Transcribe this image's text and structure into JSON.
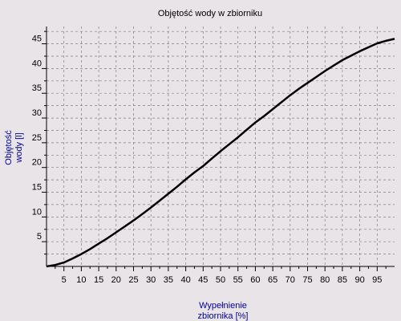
{
  "chart_data": {
    "type": "line",
    "title": "Objętość wody w zbiorniku",
    "ylabel": [
      "Objętość",
      "wody [l]"
    ],
    "xlabel": [
      "Wypełnienie",
      "zbiornika [%]"
    ],
    "xlim": [
      0,
      100
    ],
    "ylim": [
      0,
      48.5
    ],
    "x_ticks": [
      5,
      10,
      15,
      20,
      25,
      30,
      35,
      40,
      45,
      50,
      55,
      60,
      65,
      70,
      75,
      80,
      85,
      90,
      95
    ],
    "y_ticks": [
      5,
      10,
      15,
      20,
      25,
      30,
      35,
      40,
      45
    ],
    "y_minor_step": 2.5,
    "grid": true,
    "colors": {
      "background": "#e8e4e8",
      "line": "#000000",
      "axis_label": "#0000a0",
      "grid": "#808080"
    },
    "series": [
      {
        "x": [
          0,
          2.5,
          5,
          7.5,
          10,
          12.5,
          15,
          17.5,
          20,
          22.5,
          25,
          27.5,
          30,
          32.5,
          35,
          37.5,
          40,
          42.5,
          45,
          47.5,
          50,
          52.5,
          55,
          57.5,
          60,
          62.5,
          65,
          67.5,
          70,
          72.5,
          75,
          77.5,
          80,
          82.5,
          85,
          87.5,
          90,
          92.5,
          95,
          97.5,
          100
        ],
        "y": [
          0,
          0.3,
          0.8,
          1.6,
          2.5,
          3.5,
          4.6,
          5.7,
          6.9,
          8.1,
          9.3,
          10.6,
          11.9,
          13.3,
          14.7,
          16.1,
          17.6,
          19.0,
          20.3,
          21.8,
          23.3,
          24.7,
          26.1,
          27.6,
          29.1,
          30.4,
          31.8,
          33.2,
          34.6,
          35.9,
          37.1,
          38.3,
          39.5,
          40.6,
          41.7,
          42.6,
          43.5,
          44.3,
          45.1,
          45.6,
          46.0
        ]
      }
    ]
  }
}
